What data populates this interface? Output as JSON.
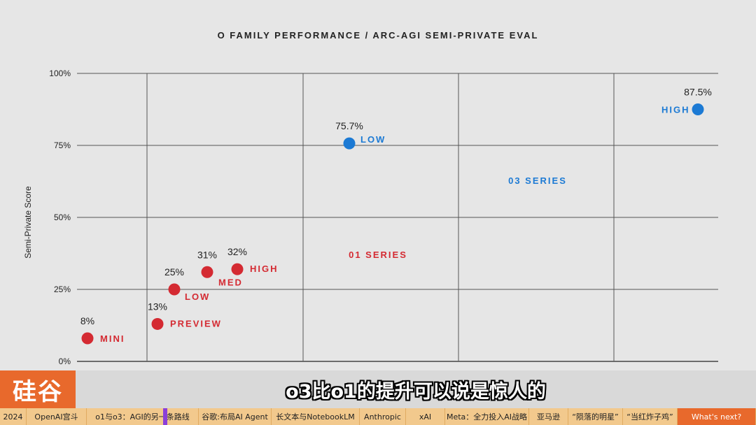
{
  "chart_data": {
    "type": "scatter",
    "title": "O FAMILY PERFORMANCE / ARC-AGI SEMI-PRIVATE EVAL",
    "ylabel": "Semi-Private Score",
    "xlabel": "",
    "ylim": [
      0,
      100
    ],
    "yticks": [
      "0%",
      "25%",
      "50%",
      "75%",
      "100%"
    ],
    "grid": true,
    "series": [
      {
        "name": "01 SERIES",
        "color": "#d42a32",
        "points": [
          {
            "label": "MINI",
            "value_label": "8%",
            "x": 0.6,
            "y": 8
          },
          {
            "label": "PREVIEW",
            "value_label": "13%",
            "x": 1.7,
            "y": 13
          },
          {
            "label": "LOW",
            "value_label": "25%",
            "x": 1.8,
            "y": 25
          },
          {
            "label": "MED",
            "value_label": "31%",
            "x": 2.2,
            "y": 31
          },
          {
            "label": "HIGH",
            "value_label": "32%",
            "x": 2.6,
            "y": 32
          }
        ]
      },
      {
        "name": "03 SERIES",
        "color": "#1c7ad4",
        "points": [
          {
            "label": "LOW",
            "value_label": "75.7%",
            "x": 4.1,
            "y": 75.7
          },
          {
            "label": "HIGH",
            "value_label": "87.5%",
            "x": 8.6,
            "y": 87.5
          }
        ]
      }
    ]
  },
  "overlay": {
    "brand": "硅谷",
    "subtitle": "o3比o1的提升可以说是惊人的"
  },
  "timeline": [
    {
      "label": "2024",
      "active": false
    },
    {
      "label": "OpenAI宫斗",
      "active": false
    },
    {
      "label": "o1与o3：AGI的另一条路线",
      "active": false
    },
    {
      "label": "谷歌:布局AI Agent",
      "active": false
    },
    {
      "label": "长文本与NotebookLM",
      "active": false
    },
    {
      "label": "Anthropic",
      "active": false
    },
    {
      "label": "xAI",
      "active": false
    },
    {
      "label": "Meta：全力投入AI战略",
      "active": false
    },
    {
      "label": "亚马逊",
      "active": false
    },
    {
      "label": "“陨落的明星”",
      "active": false
    },
    {
      "label": "“当红炸子鸡”",
      "active": false
    },
    {
      "label": "What's next?",
      "active": true
    }
  ]
}
